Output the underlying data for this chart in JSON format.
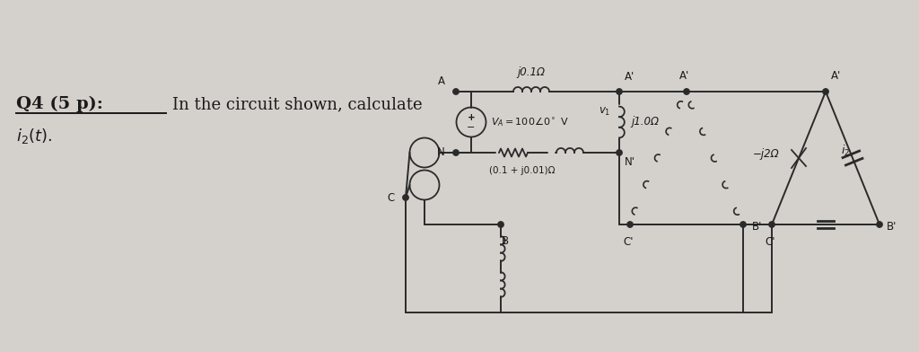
{
  "bg_color": "#d4d1cc",
  "text_color": "#1a1a1a",
  "line_color": "#2a2a2a",
  "title_text": "Q4 (5 p):",
  "body_text1": "In the circuit shown, calculate",
  "body_text2": "$i_2(t).$",
  "label_j01": "j0.1Ω",
  "label_VA": "$V_A = 100\\angle 0^\\circ$ V",
  "label_j001": "(0.1 + j0.01)Ω",
  "label_j10": "j1.0Ω",
  "label_mj2": "−j2Ω",
  "label_v1": "$v_1$",
  "label_i2": "$i_2$",
  "node_A": "A",
  "node_N": "N",
  "node_B": "B",
  "node_C": "C",
  "node_Ap": "A'",
  "node_Np": "N'",
  "node_Bp": "B'",
  "node_Cp": "C'"
}
